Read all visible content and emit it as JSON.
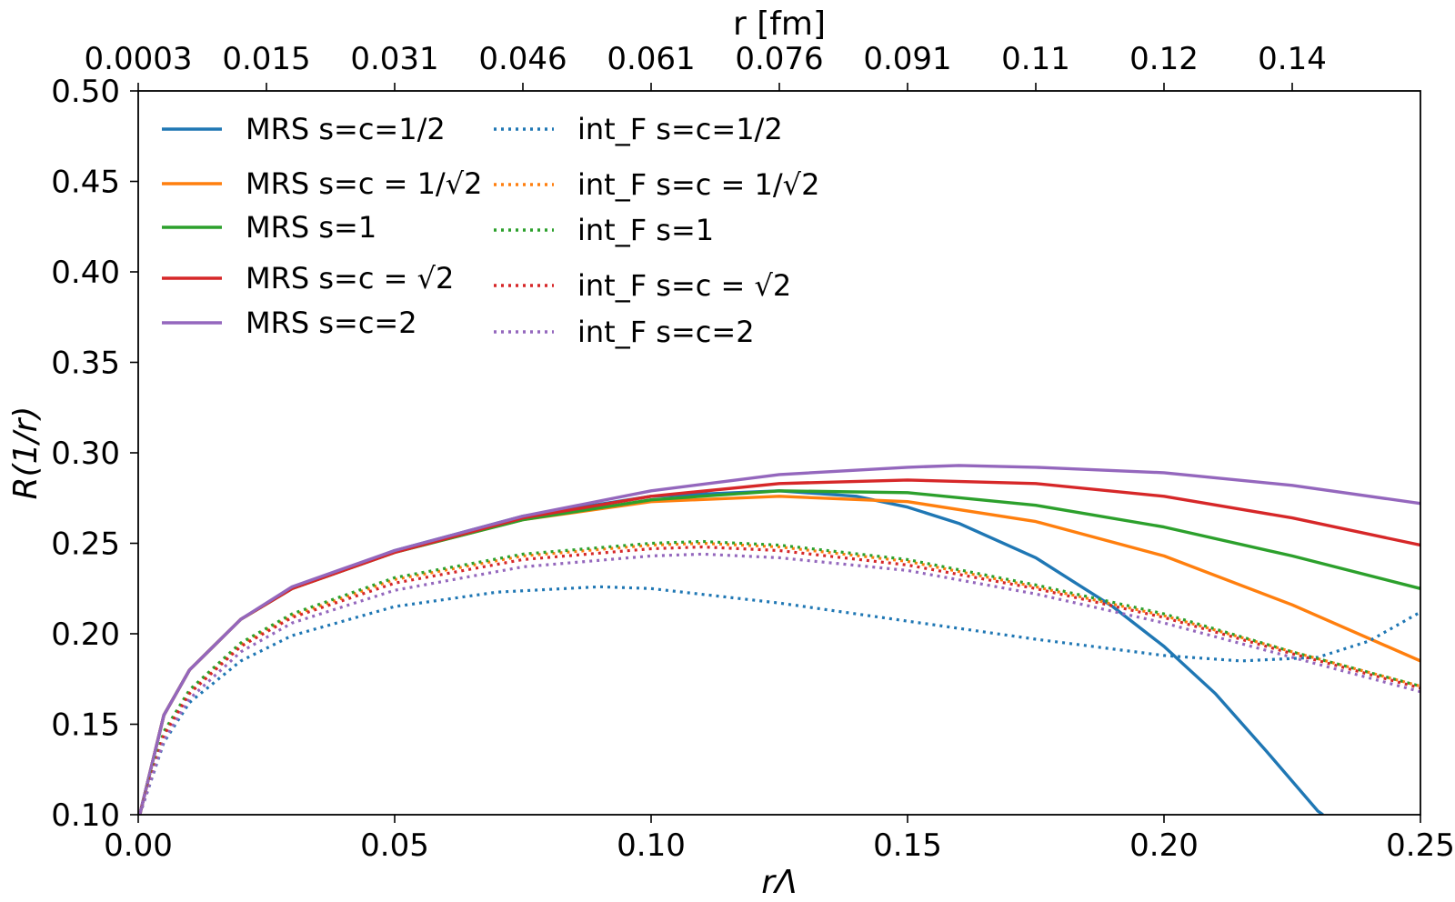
{
  "chart_data": {
    "type": "line",
    "xlabel": "rΛ",
    "ylabel": "R(1/r)",
    "top_xlabel": "r [fm]",
    "xlim": [
      0.0,
      0.25
    ],
    "ylim": [
      0.1,
      0.5
    ],
    "xticks": [
      0.0,
      0.05,
      0.1,
      0.15,
      0.2,
      0.25
    ],
    "xtick_labels": [
      "0.00",
      "0.05",
      "0.10",
      "0.15",
      "0.20",
      "0.25"
    ],
    "yticks": [
      0.1,
      0.15,
      0.2,
      0.25,
      0.3,
      0.35,
      0.4,
      0.45,
      0.5
    ],
    "ytick_labels": [
      "0.10",
      "0.15",
      "0.20",
      "0.25",
      "0.30",
      "0.35",
      "0.40",
      "0.45",
      "0.50"
    ],
    "top_xticks": [
      0.0,
      0.025,
      0.05,
      0.075,
      0.1,
      0.125,
      0.15,
      0.175,
      0.2,
      0.225
    ],
    "top_xtick_labels": [
      "0.0003",
      "0.015",
      "0.031",
      "0.046",
      "0.061",
      "0.076",
      "0.091",
      "0.11",
      "0.12",
      "0.14"
    ],
    "legend_position": "upper-left",
    "series": [
      {
        "name": "MRS s=c=1/2",
        "label_prefix": "MRS s=c=1/2",
        "color": "#1f77b4",
        "style": "solid",
        "x": [
          0.0003,
          0.005,
          0.01,
          0.02,
          0.03,
          0.05,
          0.075,
          0.1,
          0.125,
          0.14,
          0.15,
          0.16,
          0.175,
          0.19,
          0.2,
          0.21,
          0.22,
          0.23,
          0.231
        ],
        "y": [
          0.1,
          0.155,
          0.18,
          0.208,
          0.225,
          0.246,
          0.265,
          0.276,
          0.279,
          0.276,
          0.27,
          0.261,
          0.242,
          0.215,
          0.193,
          0.167,
          0.135,
          0.102,
          0.1
        ]
      },
      {
        "name": "MRS s=c=1/√2",
        "label_prefix": "MRS s=c = 1/√2",
        "color": "#ff7f0e",
        "style": "solid",
        "x": [
          0.0003,
          0.005,
          0.01,
          0.02,
          0.03,
          0.05,
          0.075,
          0.1,
          0.125,
          0.15,
          0.175,
          0.2,
          0.225,
          0.25
        ],
        "y": [
          0.1,
          0.155,
          0.18,
          0.208,
          0.225,
          0.245,
          0.263,
          0.273,
          0.276,
          0.273,
          0.262,
          0.243,
          0.216,
          0.185
        ]
      },
      {
        "name": "MRS s=1",
        "label_prefix": "MRS s=1",
        "color": "#2ca02c",
        "style": "solid",
        "x": [
          0.0003,
          0.005,
          0.01,
          0.02,
          0.03,
          0.05,
          0.075,
          0.1,
          0.125,
          0.15,
          0.175,
          0.2,
          0.225,
          0.25
        ],
        "y": [
          0.1,
          0.155,
          0.18,
          0.208,
          0.225,
          0.245,
          0.263,
          0.274,
          0.279,
          0.278,
          0.271,
          0.259,
          0.243,
          0.225
        ]
      },
      {
        "name": "MRS s=c=√2",
        "label_prefix": "MRS s=c = √2",
        "color": "#d62728",
        "style": "solid",
        "x": [
          0.0003,
          0.005,
          0.01,
          0.02,
          0.03,
          0.05,
          0.075,
          0.1,
          0.125,
          0.15,
          0.175,
          0.2,
          0.225,
          0.25
        ],
        "y": [
          0.1,
          0.155,
          0.18,
          0.208,
          0.225,
          0.245,
          0.264,
          0.276,
          0.283,
          0.285,
          0.283,
          0.276,
          0.264,
          0.249
        ]
      },
      {
        "name": "MRS s=c=2",
        "label_prefix": "MRS s=c=2",
        "color": "#9467bd",
        "style": "solid",
        "x": [
          0.0003,
          0.005,
          0.01,
          0.02,
          0.03,
          0.05,
          0.075,
          0.1,
          0.125,
          0.15,
          0.16,
          0.175,
          0.2,
          0.225,
          0.25
        ],
        "y": [
          0.1,
          0.155,
          0.18,
          0.208,
          0.226,
          0.246,
          0.265,
          0.279,
          0.288,
          0.292,
          0.293,
          0.292,
          0.289,
          0.282,
          0.272
        ]
      },
      {
        "name": "int_F s=c=1/2",
        "label_prefix": "int_F s=c=1/2",
        "color": "#1f77b4",
        "style": "dotted",
        "x": [
          0.0003,
          0.005,
          0.01,
          0.02,
          0.03,
          0.05,
          0.07,
          0.09,
          0.1,
          0.125,
          0.15,
          0.175,
          0.2,
          0.215,
          0.23,
          0.24,
          0.25
        ],
        "y": [
          0.1,
          0.14,
          0.162,
          0.185,
          0.199,
          0.215,
          0.223,
          0.226,
          0.225,
          0.217,
          0.207,
          0.197,
          0.188,
          0.185,
          0.187,
          0.196,
          0.212
        ]
      },
      {
        "name": "int_F s=c=1/√2",
        "label_prefix": "int_F s=c = 1/√2",
        "color": "#ff7f0e",
        "style": "dotted",
        "x": [
          0.0003,
          0.005,
          0.01,
          0.02,
          0.03,
          0.05,
          0.075,
          0.1,
          0.11,
          0.125,
          0.15,
          0.175,
          0.2,
          0.225,
          0.25
        ],
        "y": [
          0.1,
          0.145,
          0.168,
          0.194,
          0.21,
          0.23,
          0.243,
          0.249,
          0.25,
          0.248,
          0.24,
          0.226,
          0.21,
          0.19,
          0.171
        ]
      },
      {
        "name": "int_F s=1",
        "label_prefix": "int_F s=1",
        "color": "#2ca02c",
        "style": "dotted",
        "x": [
          0.0003,
          0.005,
          0.01,
          0.02,
          0.03,
          0.05,
          0.075,
          0.1,
          0.11,
          0.125,
          0.15,
          0.175,
          0.2,
          0.225,
          0.25
        ],
        "y": [
          0.1,
          0.146,
          0.169,
          0.195,
          0.211,
          0.231,
          0.244,
          0.25,
          0.251,
          0.249,
          0.241,
          0.227,
          0.211,
          0.19,
          0.171
        ]
      },
      {
        "name": "int_F s=c=√2",
        "label_prefix": "int_F s=c = √2",
        "color": "#d62728",
        "style": "dotted",
        "x": [
          0.0003,
          0.005,
          0.01,
          0.02,
          0.03,
          0.05,
          0.075,
          0.1,
          0.11,
          0.125,
          0.15,
          0.175,
          0.2,
          0.225,
          0.25
        ],
        "y": [
          0.1,
          0.144,
          0.167,
          0.193,
          0.209,
          0.228,
          0.241,
          0.247,
          0.248,
          0.246,
          0.238,
          0.225,
          0.209,
          0.189,
          0.17
        ]
      },
      {
        "name": "int_F s=c=2",
        "label_prefix": "int_F s=c=2",
        "color": "#9467bd",
        "style": "dotted",
        "x": [
          0.0003,
          0.005,
          0.01,
          0.02,
          0.03,
          0.05,
          0.075,
          0.1,
          0.11,
          0.125,
          0.15,
          0.175,
          0.2,
          0.225,
          0.25
        ],
        "y": [
          0.1,
          0.141,
          0.164,
          0.19,
          0.206,
          0.224,
          0.237,
          0.243,
          0.244,
          0.242,
          0.235,
          0.222,
          0.206,
          0.187,
          0.168
        ]
      }
    ]
  }
}
